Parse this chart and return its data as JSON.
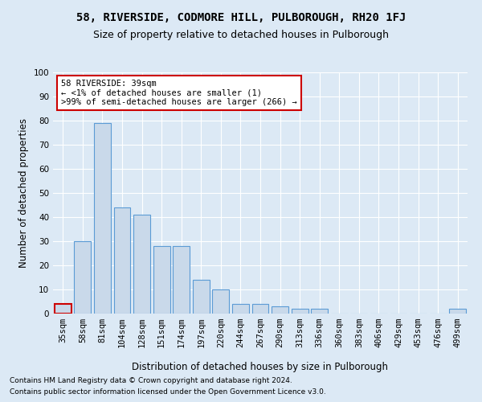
{
  "title": "58, RIVERSIDE, CODMORE HILL, PULBOROUGH, RH20 1FJ",
  "subtitle": "Size of property relative to detached houses in Pulborough",
  "xlabel": "Distribution of detached houses by size in Pulborough",
  "ylabel": "Number of detached properties",
  "categories": [
    "35sqm",
    "58sqm",
    "81sqm",
    "104sqm",
    "128sqm",
    "151sqm",
    "174sqm",
    "197sqm",
    "220sqm",
    "244sqm",
    "267sqm",
    "290sqm",
    "313sqm",
    "336sqm",
    "360sqm",
    "383sqm",
    "406sqm",
    "429sqm",
    "453sqm",
    "476sqm",
    "499sqm"
  ],
  "values": [
    4,
    30,
    79,
    44,
    41,
    28,
    28,
    14,
    10,
    4,
    4,
    3,
    2,
    2,
    0,
    0,
    0,
    0,
    0,
    0,
    2
  ],
  "bar_color": "#c9d9ea",
  "bar_edge_color": "#5b9bd5",
  "highlight_bar_index": 0,
  "highlight_bar_edge_color": "#cc0000",
  "annotation_box_text": "58 RIVERSIDE: 39sqm\n← <1% of detached houses are smaller (1)\n>99% of semi-detached houses are larger (266) →",
  "ylim": [
    0,
    100
  ],
  "yticks": [
    0,
    10,
    20,
    30,
    40,
    50,
    60,
    70,
    80,
    90,
    100
  ],
  "background_color": "#dce9f5",
  "plot_bg_color": "#dce9f5",
  "grid_color": "#ffffff",
  "footer1": "Contains HM Land Registry data © Crown copyright and database right 2024.",
  "footer2": "Contains public sector information licensed under the Open Government Licence v3.0.",
  "title_fontsize": 10,
  "subtitle_fontsize": 9,
  "xlabel_fontsize": 8.5,
  "ylabel_fontsize": 8.5,
  "tick_fontsize": 7.5,
  "annotation_fontsize": 7.5,
  "footer_fontsize": 6.5
}
